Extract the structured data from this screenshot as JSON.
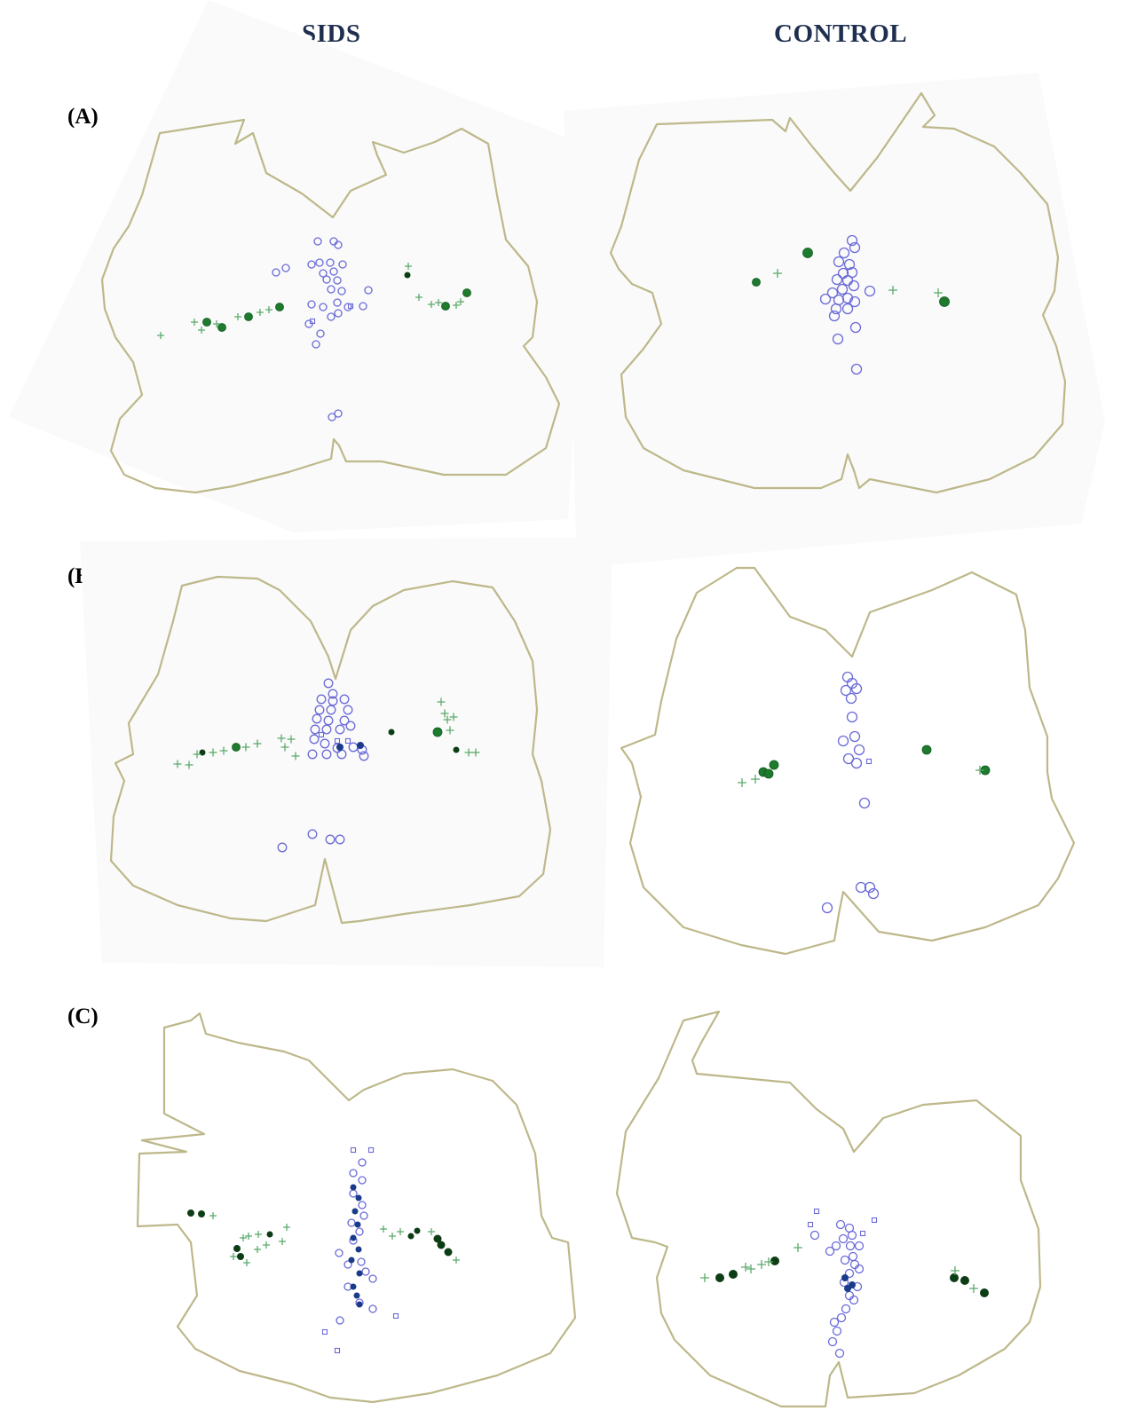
{
  "headers": {
    "left": "SIDS",
    "right": "CONTROL"
  },
  "rows": [
    {
      "label": "(A)"
    },
    {
      "label": "(B)"
    },
    {
      "label": "(C)"
    }
  ],
  "colors": {
    "outline": "#bdb88a",
    "open_marker": "#6a6ad8",
    "filled_blue": "#1a3a8a",
    "filled_green": "#1e7a2c",
    "dark_green": "#0d3d15",
    "plus_marker": "#5aaa6a",
    "header_text": "#1f2f4f"
  },
  "marker_types": [
    "open-circle",
    "open-square",
    "filled-blue-dot",
    "filled-green-dot",
    "dark-green-dot",
    "plus"
  ]
}
